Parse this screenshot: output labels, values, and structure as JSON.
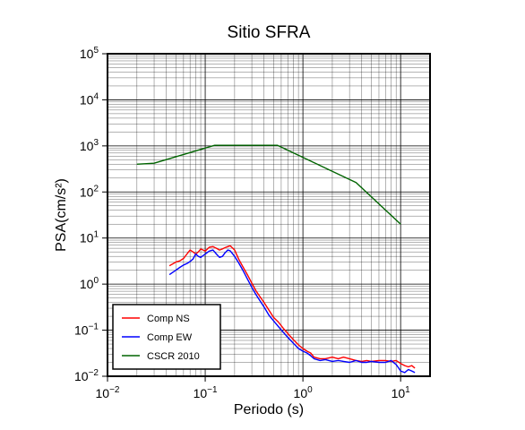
{
  "chart_data": {
    "type": "line",
    "title": "Sitio SFRA",
    "xlabel": "Periodo (s)",
    "ylabel": "PSA(cm/s²)",
    "x_scale": "log",
    "y_scale": "log",
    "xlim": [
      0.01,
      20
    ],
    "ylim": [
      0.01,
      100000
    ],
    "grid": true,
    "legend_position": "bottom-left",
    "x_ticks": [
      {
        "base": "10",
        "exp": "−2"
      },
      {
        "base": "10",
        "exp": "−1"
      },
      {
        "base": "10",
        "exp": "0"
      },
      {
        "base": "10",
        "exp": "1"
      }
    ],
    "y_ticks": [
      {
        "base": "10",
        "exp": "−2"
      },
      {
        "base": "10",
        "exp": "−1"
      },
      {
        "base": "10",
        "exp": "0"
      },
      {
        "base": "10",
        "exp": "1"
      },
      {
        "base": "10",
        "exp": "2"
      },
      {
        "base": "10",
        "exp": "3"
      },
      {
        "base": "10",
        "exp": "4"
      },
      {
        "base": "10",
        "exp": "5"
      }
    ],
    "series": [
      {
        "name": "Comp NS",
        "color": "#ff0000",
        "x": [
          0.043,
          0.05,
          0.055,
          0.06,
          0.065,
          0.07,
          0.075,
          0.08,
          0.085,
          0.09,
          0.1,
          0.11,
          0.12,
          0.13,
          0.14,
          0.15,
          0.16,
          0.17,
          0.18,
          0.2,
          0.22,
          0.24,
          0.27,
          0.3,
          0.33,
          0.36,
          0.4,
          0.45,
          0.5,
          0.56,
          0.63,
          0.7,
          0.8,
          0.9,
          1.0,
          1.1,
          1.2,
          1.3,
          1.5,
          1.7,
          2.0,
          2.3,
          2.6,
          3.0,
          3.5,
          4.0,
          4.5,
          5.0,
          6.0,
          7.0,
          8.0,
          9.0,
          10.0,
          11.0,
          12.0,
          13.0,
          14.0
        ],
        "y": [
          2.5,
          3.0,
          3.2,
          3.6,
          4.5,
          5.5,
          5.0,
          4.5,
          5.0,
          5.8,
          5.2,
          6.3,
          6.5,
          6.0,
          5.5,
          5.8,
          6.2,
          6.5,
          6.8,
          5.5,
          3.5,
          2.5,
          1.6,
          1.05,
          0.72,
          0.55,
          0.4,
          0.27,
          0.19,
          0.15,
          0.11,
          0.085,
          0.062,
          0.048,
          0.04,
          0.035,
          0.032,
          0.026,
          0.024,
          0.024,
          0.026,
          0.024,
          0.026,
          0.024,
          0.022,
          0.021,
          0.022,
          0.021,
          0.022,
          0.022,
          0.021,
          0.022,
          0.019,
          0.017,
          0.016,
          0.017,
          0.015
        ]
      },
      {
        "name": "Comp EW",
        "color": "#0000ff",
        "x": [
          0.043,
          0.05,
          0.055,
          0.06,
          0.065,
          0.07,
          0.075,
          0.08,
          0.085,
          0.09,
          0.1,
          0.11,
          0.12,
          0.13,
          0.14,
          0.15,
          0.16,
          0.17,
          0.18,
          0.2,
          0.22,
          0.24,
          0.27,
          0.3,
          0.33,
          0.36,
          0.4,
          0.45,
          0.5,
          0.56,
          0.63,
          0.7,
          0.8,
          0.9,
          1.0,
          1.1,
          1.2,
          1.3,
          1.5,
          1.7,
          2.0,
          2.3,
          2.6,
          3.0,
          3.5,
          4.0,
          4.5,
          5.0,
          6.0,
          7.0,
          8.0,
          9.0,
          10.0,
          11.0,
          12.0,
          13.0,
          14.0
        ],
        "y": [
          1.6,
          2.0,
          2.3,
          2.6,
          2.8,
          3.1,
          3.5,
          4.5,
          4.0,
          3.8,
          4.5,
          5.2,
          5.5,
          4.5,
          3.8,
          4.0,
          4.8,
          5.5,
          5.3,
          4.0,
          2.9,
          2.1,
          1.3,
          0.85,
          0.6,
          0.45,
          0.32,
          0.21,
          0.16,
          0.12,
          0.09,
          0.07,
          0.052,
          0.04,
          0.035,
          0.032,
          0.028,
          0.024,
          0.022,
          0.023,
          0.021,
          0.022,
          0.021,
          0.02,
          0.022,
          0.02,
          0.02,
          0.021,
          0.02,
          0.02,
          0.022,
          0.018,
          0.013,
          0.012,
          0.014,
          0.013,
          0.012
        ]
      },
      {
        "name": "CSCR 2010",
        "color": "#006400",
        "x": [
          0.02,
          0.03,
          0.125,
          0.55,
          3.5,
          10.0
        ],
        "y": [
          400,
          420,
          1030,
          1030,
          160,
          20
        ]
      }
    ]
  }
}
